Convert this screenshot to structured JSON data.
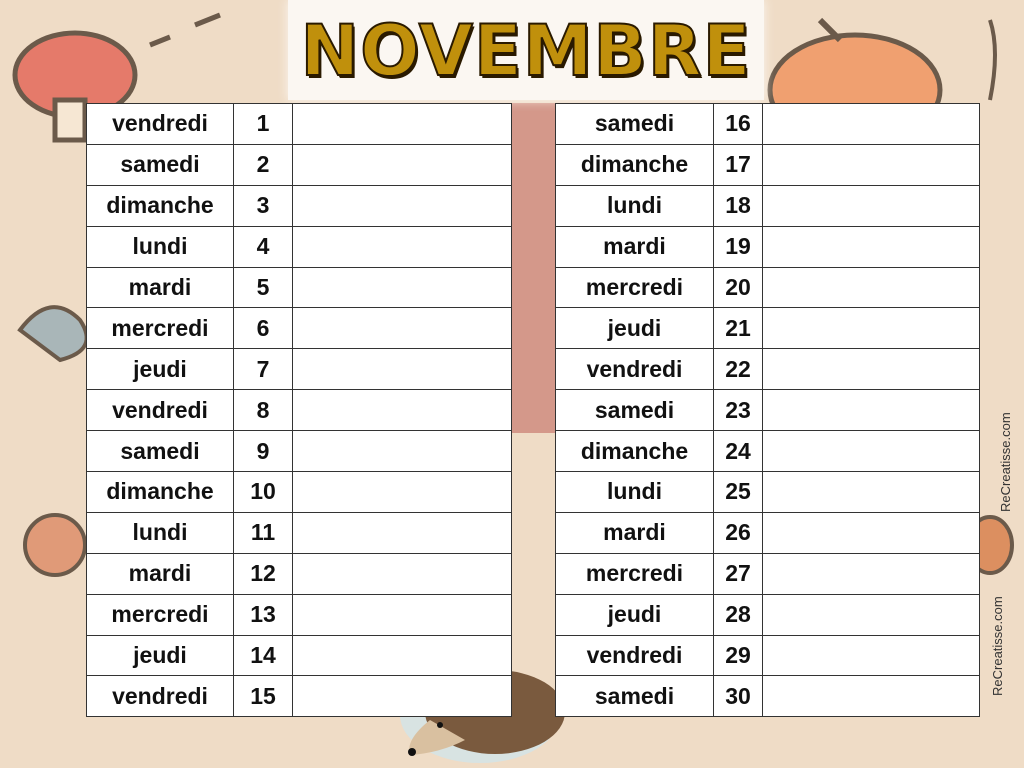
{
  "title": "NOVEMBRE",
  "watermark": "ReCreatisse.com",
  "colors": {
    "title": "#c0900c",
    "background": "#efdcc6"
  },
  "left_table": [
    {
      "day": "vendredi",
      "num": "1"
    },
    {
      "day": "samedi",
      "num": "2"
    },
    {
      "day": "dimanche",
      "num": "3"
    },
    {
      "day": "lundi",
      "num": "4"
    },
    {
      "day": "mardi",
      "num": "5"
    },
    {
      "day": "mercredi",
      "num": "6"
    },
    {
      "day": "jeudi",
      "num": "7"
    },
    {
      "day": "vendredi",
      "num": "8"
    },
    {
      "day": "samedi",
      "num": "9"
    },
    {
      "day": "dimanche",
      "num": "10"
    },
    {
      "day": "lundi",
      "num": "11"
    },
    {
      "day": "mardi",
      "num": "12"
    },
    {
      "day": "mercredi",
      "num": "13"
    },
    {
      "day": "jeudi",
      "num": "14"
    },
    {
      "day": "vendredi",
      "num": "15"
    }
  ],
  "right_table": [
    {
      "day": "samedi",
      "num": "16"
    },
    {
      "day": "dimanche",
      "num": "17"
    },
    {
      "day": "lundi",
      "num": "18"
    },
    {
      "day": "mardi",
      "num": "19"
    },
    {
      "day": "mercredi",
      "num": "20"
    },
    {
      "day": "jeudi",
      "num": "21"
    },
    {
      "day": "vendredi",
      "num": "22"
    },
    {
      "day": "samedi",
      "num": "23"
    },
    {
      "day": "dimanche",
      "num": "24"
    },
    {
      "day": "lundi",
      "num": "25"
    },
    {
      "day": "mardi",
      "num": "26"
    },
    {
      "day": "mercredi",
      "num": "27"
    },
    {
      "day": "jeudi",
      "num": "28"
    },
    {
      "day": "vendredi",
      "num": "29"
    },
    {
      "day": "samedi",
      "num": "30"
    }
  ]
}
